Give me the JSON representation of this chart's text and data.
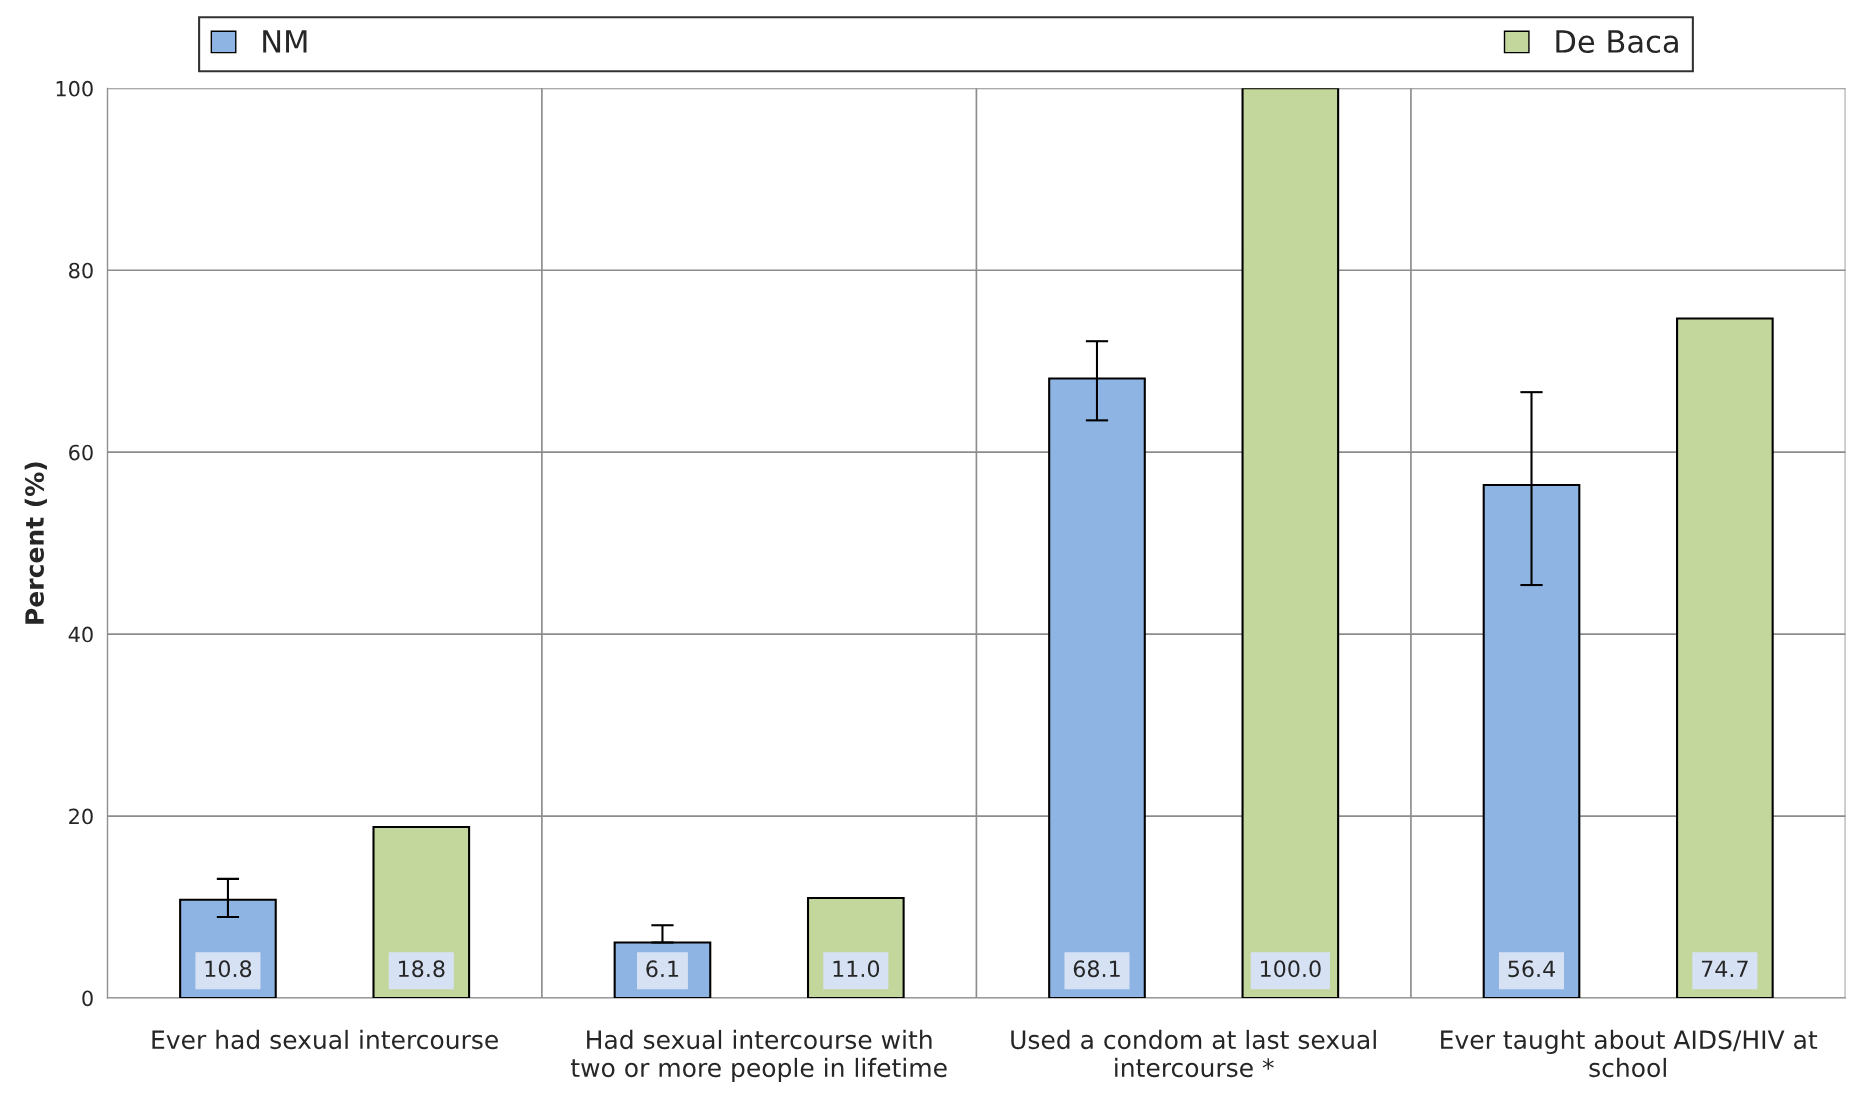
{
  "chart_data": {
    "type": "bar",
    "ylabel": "Percent (%)",
    "categories": [
      "Ever had sexual intercourse",
      "Had sexual intercourse with two or more people in lifetime",
      "Used a condom at last sexual intercourse *",
      "Ever taught about AIDS/HIV at school"
    ],
    "series": [
      {
        "name": "NM",
        "color": "#8eb4e3",
        "values": [
          10.8,
          6.1,
          68.1,
          56.4
        ],
        "errors": [
          [
            8.9,
            13.1
          ],
          [
            6.1,
            8.0
          ],
          [
            63.5,
            72.2
          ],
          [
            45.4,
            66.6
          ]
        ],
        "value_labels": [
          "10.8",
          "6.1",
          "68.1",
          "56.4"
        ]
      },
      {
        "name": "De Baca",
        "color": "#c3d69b",
        "values": [
          18.8,
          11.0,
          100.0,
          74.7
        ],
        "value_labels": [
          "18.8",
          "11.0",
          "100.0",
          "74.7"
        ]
      }
    ],
    "ylim": [
      0,
      100
    ],
    "yticks": [
      0,
      20,
      40,
      60,
      80,
      100
    ],
    "grid": true,
    "legend": "top"
  }
}
